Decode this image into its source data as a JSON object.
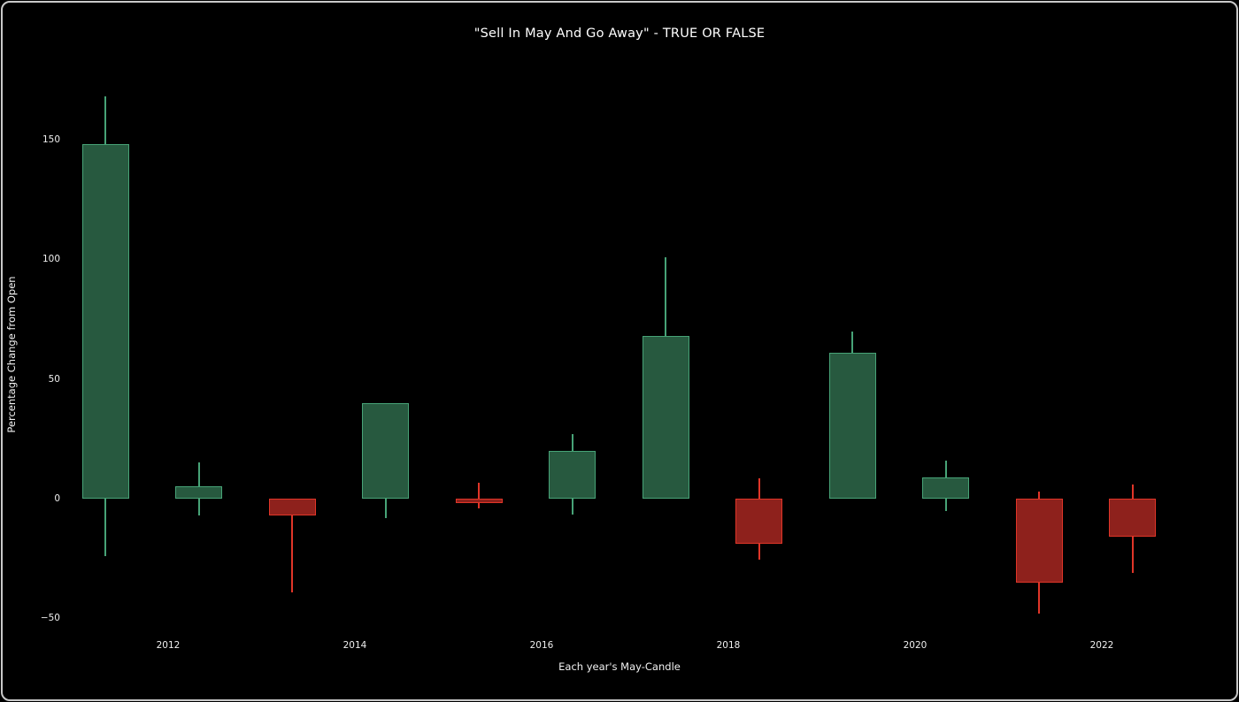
{
  "figure": {
    "title": "\"Sell In May And Go Away\" - TRUE OR FALSE",
    "xlabel": "Each year's May-Candle",
    "ylabel": "Percentage Change from Open"
  },
  "chart_data": {
    "type": "candlestick",
    "title": "\"Sell In May And Go Away\" - TRUE OR FALSE",
    "xlabel": "Each year's May-Candle",
    "ylabel": "Percentage Change from Open",
    "grid": false,
    "legend": null,
    "ylim": [
      -56,
      183
    ],
    "y_ticks": [
      {
        "value": 150,
        "label": "150"
      },
      {
        "value": 100,
        "label": "100"
      },
      {
        "value": 50,
        "label": "50"
      },
      {
        "value": 0,
        "label": "0"
      },
      {
        "value": -50,
        "label": "−50"
      }
    ],
    "x_ticks": [
      {
        "year": 2012,
        "label": "2012"
      },
      {
        "year": 2014,
        "label": "2014"
      },
      {
        "year": 2016,
        "label": "2016"
      },
      {
        "year": 2018,
        "label": "2018"
      },
      {
        "year": 2020,
        "label": "2020"
      },
      {
        "year": 2022,
        "label": "2022"
      }
    ],
    "candles": [
      {
        "year": 2011,
        "open": 0,
        "high": 168,
        "low": -24,
        "close": 148,
        "direction": "up"
      },
      {
        "year": 2012,
        "open": 0,
        "high": 15,
        "low": -7,
        "close": 5,
        "direction": "up"
      },
      {
        "year": 2013,
        "open": 0,
        "high": 0,
        "low": -39,
        "close": -7,
        "direction": "down"
      },
      {
        "year": 2014,
        "open": 0,
        "high": 40,
        "low": -8,
        "close": 40,
        "direction": "up"
      },
      {
        "year": 2015,
        "open": 0,
        "high": 6.5,
        "low": -4,
        "close": -2,
        "direction": "down"
      },
      {
        "year": 2016,
        "open": 0,
        "high": 27,
        "low": -6.5,
        "close": 20,
        "direction": "up"
      },
      {
        "year": 2017,
        "open": 0,
        "high": 101,
        "low": 0,
        "close": 68,
        "direction": "up"
      },
      {
        "year": 2018,
        "open": 0,
        "high": 8.5,
        "low": -25.5,
        "close": -19,
        "direction": "down"
      },
      {
        "year": 2019,
        "open": 0,
        "high": 70,
        "low": 0,
        "close": 61,
        "direction": "up"
      },
      {
        "year": 2020,
        "open": 0,
        "high": 16,
        "low": -5,
        "close": 9,
        "direction": "up"
      },
      {
        "year": 2021,
        "open": 0,
        "high": 3,
        "low": -48,
        "close": -35,
        "direction": "down"
      },
      {
        "year": 2022,
        "open": 0,
        "high": 6,
        "low": -31,
        "close": -16,
        "direction": "down"
      }
    ],
    "colors": {
      "background": "#000000",
      "text": "#ffffff",
      "up_fill": "#27593f",
      "up_edge": "#47a377",
      "down_fill": "#8e211c",
      "down_edge": "#e03528"
    }
  }
}
